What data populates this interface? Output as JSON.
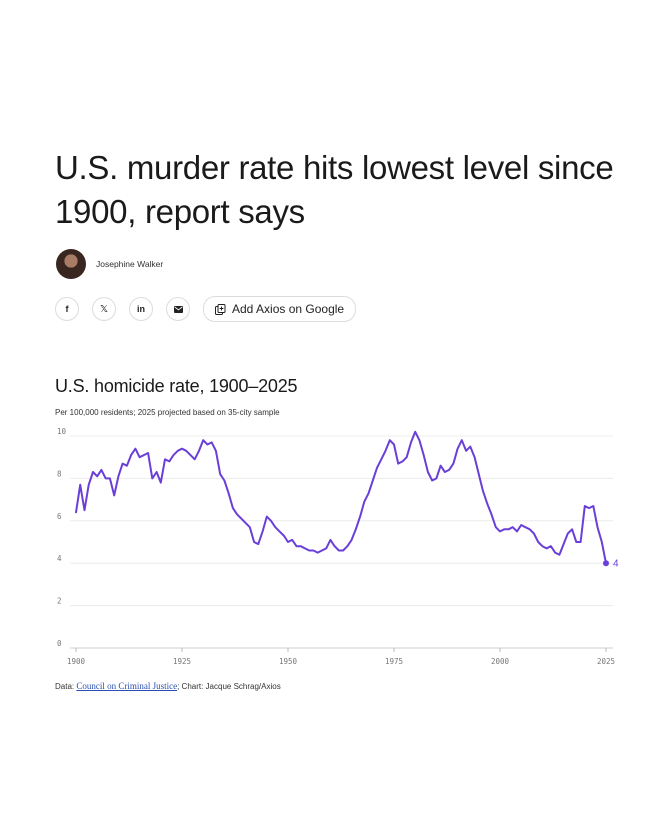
{
  "article": {
    "headline": "U.S. murder rate hits lowest level since 1900, report says",
    "author": "Josephine Walker"
  },
  "share": {
    "facebook": "f",
    "x": "𝕏",
    "linkedin": "in",
    "google_label": "Add Axios on Google"
  },
  "chart_data": {
    "type": "line",
    "title": "U.S. homicide rate, 1900–2025",
    "subtitle": "Per 100,000 residents; 2025 projected based on 35-city sample",
    "xlim": [
      1900,
      2025
    ],
    "ylim": [
      0,
      10
    ],
    "x_ticks": [
      1900,
      1925,
      1950,
      1975,
      2000,
      2025
    ],
    "y_ticks": [
      0,
      2,
      4,
      6,
      8,
      10
    ],
    "grid": true,
    "end_label": "4",
    "color": "#6a3fd8",
    "x": [
      1900,
      1901,
      1902,
      1903,
      1904,
      1905,
      1906,
      1907,
      1908,
      1909,
      1910,
      1911,
      1912,
      1913,
      1914,
      1915,
      1916,
      1917,
      1918,
      1919,
      1920,
      1921,
      1922,
      1923,
      1924,
      1925,
      1926,
      1927,
      1928,
      1929,
      1930,
      1931,
      1932,
      1933,
      1934,
      1935,
      1936,
      1937,
      1938,
      1939,
      1940,
      1941,
      1942,
      1943,
      1944,
      1945,
      1946,
      1947,
      1948,
      1949,
      1950,
      1951,
      1952,
      1953,
      1954,
      1955,
      1956,
      1957,
      1958,
      1959,
      1960,
      1961,
      1962,
      1963,
      1964,
      1965,
      1966,
      1967,
      1968,
      1969,
      1970,
      1971,
      1972,
      1973,
      1974,
      1975,
      1976,
      1977,
      1978,
      1979,
      1980,
      1981,
      1982,
      1983,
      1984,
      1985,
      1986,
      1987,
      1988,
      1989,
      1990,
      1991,
      1992,
      1993,
      1994,
      1995,
      1996,
      1997,
      1998,
      1999,
      2000,
      2001,
      2002,
      2003,
      2004,
      2005,
      2006,
      2007,
      2008,
      2009,
      2010,
      2011,
      2012,
      2013,
      2014,
      2015,
      2016,
      2017,
      2018,
      2019,
      2020,
      2021,
      2022,
      2023,
      2024,
      2025
    ],
    "values": [
      6.4,
      7.7,
      6.5,
      7.7,
      8.3,
      8.1,
      8.4,
      8.0,
      8.0,
      7.2,
      8.1,
      8.7,
      8.6,
      9.1,
      9.4,
      9.0,
      9.1,
      9.2,
      8.0,
      8.3,
      7.8,
      8.9,
      8.8,
      9.1,
      9.3,
      9.4,
      9.3,
      9.1,
      8.9,
      9.3,
      9.8,
      9.6,
      9.7,
      9.3,
      8.2,
      7.9,
      7.3,
      6.6,
      6.3,
      6.1,
      5.9,
      5.7,
      5.0,
      4.9,
      5.5,
      6.2,
      6.0,
      5.7,
      5.5,
      5.3,
      5.0,
      5.1,
      4.8,
      4.8,
      4.7,
      4.6,
      4.6,
      4.5,
      4.6,
      4.7,
      5.1,
      4.8,
      4.6,
      4.6,
      4.8,
      5.1,
      5.6,
      6.2,
      6.9,
      7.3,
      7.9,
      8.5,
      8.9,
      9.3,
      9.8,
      9.6,
      8.7,
      8.8,
      9.0,
      9.7,
      10.2,
      9.8,
      9.1,
      8.3,
      7.9,
      8.0,
      8.6,
      8.3,
      8.4,
      8.7,
      9.4,
      9.8,
      9.3,
      9.5,
      9.0,
      8.2,
      7.4,
      6.8,
      6.3,
      5.7,
      5.5,
      5.6,
      5.6,
      5.7,
      5.5,
      5.8,
      5.7,
      5.6,
      5.4,
      5.0,
      4.8,
      4.7,
      4.8,
      4.5,
      4.4,
      4.9,
      5.4,
      5.6,
      5.0,
      5.0,
      6.7,
      6.6,
      6.7,
      5.7,
      5.0,
      4.0
    ]
  },
  "footer": {
    "prefix": "Data: ",
    "source": "Council on Criminal Justice",
    "suffix": "; Chart: Jacque Schrag/Axios"
  }
}
